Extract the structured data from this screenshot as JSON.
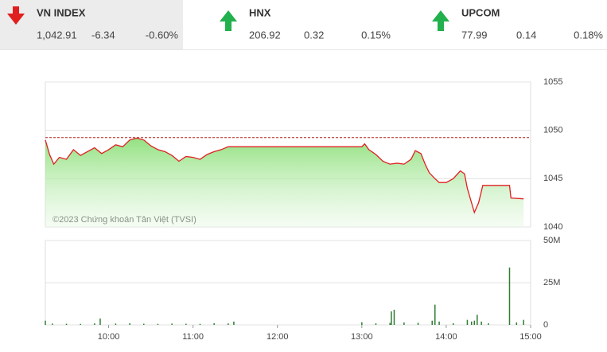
{
  "indices": [
    {
      "name": "VN INDEX",
      "value": "1,042.91",
      "change": "-6.34",
      "percent": "-0.60%",
      "direction": "down",
      "color": "#e02020"
    },
    {
      "name": "HNX",
      "value": "206.92",
      "change": "0.32",
      "percent": "0.15%",
      "direction": "up",
      "color": "#22b14c"
    },
    {
      "name": "UPCOM",
      "value": "77.99",
      "change": "0.14",
      "percent": "0.18%",
      "direction": "up",
      "color": "#22b14c"
    }
  ],
  "chart_data": [
    {
      "type": "line",
      "annotation": "©2023 Chứng khoán Tân Việt (TVSI)",
      "x": [
        "09:15",
        "09:18",
        "09:21",
        "09:25",
        "09:30",
        "09:35",
        "09:40",
        "09:45",
        "09:50",
        "09:55",
        "10:00",
        "10:05",
        "10:10",
        "10:15",
        "10:20",
        "10:25",
        "10:30",
        "10:35",
        "10:40",
        "10:45",
        "10:50",
        "10:55",
        "11:00",
        "11:05",
        "11:10",
        "11:15",
        "11:20",
        "11:25",
        "11:30",
        "13:00",
        "13:02",
        "13:05",
        "13:10",
        "13:15",
        "13:20",
        "13:25",
        "13:30",
        "13:35",
        "13:38",
        "13:42",
        "13:45",
        "13:48",
        "13:52",
        "13:55",
        "14:00",
        "14:05",
        "14:10",
        "14:13",
        "14:15",
        "14:18",
        "14:20",
        "14:23",
        "14:26",
        "14:30",
        "14:40",
        "14:45",
        "14:46",
        "14:55"
      ],
      "series": [
        {
          "name": "VN INDEX",
          "color": "#e02020",
          "values": [
            1049.0,
            1047.5,
            1046.5,
            1047.2,
            1047.0,
            1048.0,
            1047.4,
            1047.8,
            1048.2,
            1047.6,
            1048.0,
            1048.5,
            1048.3,
            1049.0,
            1049.2,
            1049.0,
            1048.4,
            1048.0,
            1047.8,
            1047.4,
            1046.8,
            1047.3,
            1047.2,
            1047.0,
            1047.5,
            1047.8,
            1048.0,
            1048.3,
            1048.3,
            1048.3,
            1048.6,
            1048.0,
            1047.5,
            1046.8,
            1046.5,
            1046.6,
            1046.5,
            1047.0,
            1047.9,
            1047.6,
            1046.5,
            1045.6,
            1045.0,
            1044.6,
            1044.6,
            1045.0,
            1045.8,
            1045.5,
            1044.0,
            1042.5,
            1041.5,
            1042.5,
            1044.3,
            1044.3,
            1044.3,
            1044.3,
            1043.0,
            1042.91
          ]
        }
      ],
      "reference": 1049.25,
      "reference_color": "#b02020",
      "xlim": [
        "09:15",
        "15:00"
      ],
      "ylim": [
        1040,
        1055
      ],
      "yticks": [
        1040,
        1045,
        1050,
        1055
      ],
      "grid": true
    },
    {
      "type": "bar",
      "x": [
        "09:15",
        "09:20",
        "09:30",
        "09:40",
        "09:50",
        "09:54",
        "10:05",
        "10:15",
        "10:25",
        "10:35",
        "10:45",
        "10:55",
        "11:05",
        "11:15",
        "11:25",
        "11:29",
        "13:00",
        "13:10",
        "13:20",
        "13:21",
        "13:23",
        "13:30",
        "13:40",
        "13:50",
        "13:52",
        "13:55",
        "14:05",
        "14:15",
        "14:18",
        "14:20",
        "14:22",
        "14:25",
        "14:30",
        "14:45",
        "14:50",
        "14:55"
      ],
      "values": [
        2.5,
        0.8,
        0.7,
        0.6,
        0.9,
        3.8,
        0.8,
        1.0,
        0.7,
        0.6,
        0.8,
        0.7,
        0.6,
        1.0,
        0.9,
        2.0,
        1.6,
        0.9,
        1.2,
        8.0,
        9.0,
        1.5,
        1.3,
        2.5,
        12.0,
        2.0,
        1.0,
        3.0,
        2.0,
        2.5,
        6.0,
        2.0,
        1.0,
        34.0,
        1.5,
        3.0
      ],
      "color": "#2e7d32",
      "xlim": [
        "09:15",
        "15:00"
      ],
      "ylim": [
        0,
        50
      ],
      "yticks": [
        0,
        {
          "value": 25,
          "label": "25M"
        },
        {
          "value": 50,
          "label": "50M"
        }
      ],
      "xticks": [
        "10:00",
        "11:00",
        "12:00",
        "13:00",
        "14:00",
        "15:00"
      ],
      "grid": true
    }
  ]
}
